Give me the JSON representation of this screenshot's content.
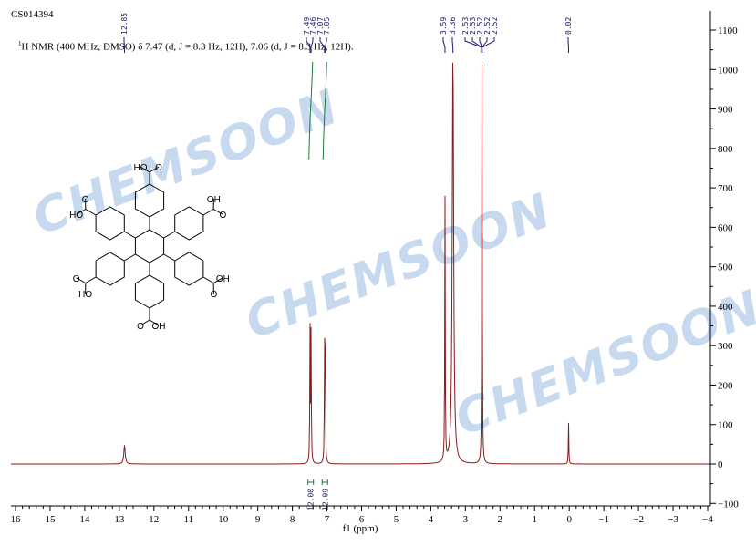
{
  "header": {
    "sample_id": "CS014394",
    "assignment_sup": "1",
    "assignment_text": "H NMR (400 MHz, DMSO) δ 7.47 (d, J = 8.3 Hz, 12H), 7.06 (d, J = 8.3 Hz, 12H)."
  },
  "watermark": "CHEMSOON",
  "structure": {
    "labels": [
      "OH",
      "HO",
      "O"
    ]
  },
  "colors": {
    "spectrum": "#8b1a1a",
    "integral": "#1e7a3a",
    "peak_label": "#1a1a6e",
    "watermark": "#a9c6e8"
  },
  "chart_data": {
    "type": "line",
    "xlabel": "f1 (ppm)",
    "xlim": [
      16,
      -4
    ],
    "ylim": [
      -100,
      1150
    ],
    "x_ticks": [
      16,
      15,
      14,
      13,
      12,
      11,
      10,
      9,
      8,
      7,
      6,
      5,
      4,
      3,
      2,
      1,
      0,
      -1,
      -2,
      -3,
      -4
    ],
    "y_ticks": [
      -100,
      0,
      100,
      200,
      300,
      400,
      500,
      600,
      700,
      800,
      900,
      1000,
      1100
    ],
    "peaks": [
      {
        "ppm": 12.85,
        "height": 48
      },
      {
        "ppm": 7.49,
        "height": 340
      },
      {
        "ppm": 7.46,
        "height": 350
      },
      {
        "ppm": 7.07,
        "height": 300
      },
      {
        "ppm": 7.05,
        "height": 295
      },
      {
        "ppm": 3.59,
        "height": 680
      },
      {
        "ppm": 3.36,
        "height": 1060
      },
      {
        "ppm": 2.52,
        "height": 1060
      },
      {
        "ppm": 0.02,
        "height": 108
      }
    ],
    "peak_labels": [
      {
        "text": "12.85",
        "ppm": 12.85
      },
      {
        "text": "7.49",
        "ppm": 7.49
      },
      {
        "text": "7.46",
        "ppm": 7.46
      },
      {
        "text": "7.07",
        "ppm": 7.07
      },
      {
        "text": "7.05",
        "ppm": 7.05
      },
      {
        "text": "3.59",
        "ppm": 3.59
      },
      {
        "text": "3.36",
        "ppm": 3.36
      },
      {
        "text": "2.53",
        "ppm": 2.53
      },
      {
        "text": "2.53",
        "ppm": 2.53
      },
      {
        "text": "2.52",
        "ppm": 2.52
      },
      {
        "text": "2.52",
        "ppm": 2.52
      },
      {
        "text": "2.52",
        "ppm": 2.52
      },
      {
        "text": "0.02",
        "ppm": 0.02
      }
    ],
    "integrals": [
      {
        "ppm": 7.47,
        "value": "12.00"
      },
      {
        "ppm": 7.06,
        "value": "12.09"
      }
    ]
  }
}
